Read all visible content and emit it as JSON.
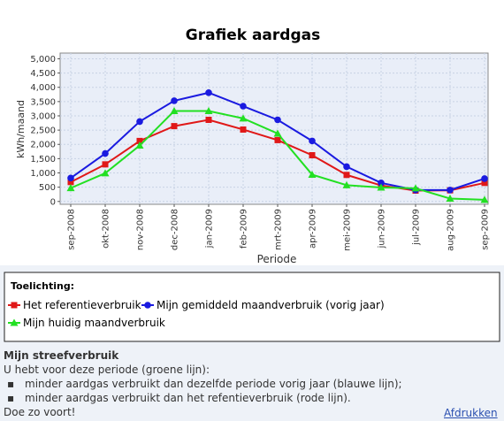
{
  "chart_data": {
    "type": "line",
    "title": "Grafiek aardgas",
    "y_label": "kWh/maand",
    "x_label": "Periode",
    "categories": [
      "sep-2008",
      "okt-2008",
      "nov-2008",
      "dec-2008",
      "jan-2009",
      "feb-2009",
      "mrt-2009",
      "apr-2009",
      "mei-2009",
      "jun-2009",
      "jul-2009",
      "aug-2009",
      "sep-2009"
    ],
    "series": [
      {
        "name": "Het referentieverbruik",
        "color": "#e01818",
        "marker": "square",
        "values": [
          680,
          1300,
          2120,
          2640,
          2860,
          2520,
          2150,
          1620,
          930,
          560,
          380,
          390,
          650
        ]
      },
      {
        "name": "Mijn gemiddeld maandverbruik (vorig jaar)",
        "color": "#1a1ae0",
        "marker": "circle",
        "values": [
          820,
          1680,
          2800,
          3530,
          3810,
          3340,
          2860,
          2120,
          1220,
          650,
          400,
          400,
          800
        ]
      },
      {
        "name": "Mijn huidig maandverbruik",
        "color": "#22e022",
        "marker": "triangle",
        "values": [
          470,
          990,
          1960,
          3170,
          3170,
          2910,
          2380,
          940,
          570,
          490,
          460,
          100,
          60
        ]
      }
    ],
    "ylim": [
      -100,
      5200
    ],
    "yticks": [
      0,
      500,
      {
        "value": 1000,
        "label": "1,000"
      },
      {
        "value": 1500,
        "label": "1,500"
      },
      {
        "value": 2000,
        "label": "2,000"
      },
      {
        "value": 2500,
        "label": "2,500"
      },
      {
        "value": 3000,
        "label": "3,000"
      },
      {
        "value": 3500,
        "label": "3,500"
      },
      {
        "value": 4000,
        "label": "4,000"
      },
      {
        "value": 4500,
        "label": "4,500"
      },
      {
        "value": 5000,
        "label": "5,000"
      }
    ],
    "grid": true,
    "legend_title": "Toelichting:"
  },
  "advice": {
    "title": "Mijn streefverbruik",
    "intro": "U hebt voor deze periode (groene lijn):",
    "bullets": [
      "minder aardgas verbruikt dan dezelfde periode vorig jaar (blauwe lijn);",
      "minder aardgas verbruikt dan het refentieverbruik (rode lijn)."
    ],
    "closing": "Doe zo voort!"
  },
  "print_link": "Afdrukken"
}
